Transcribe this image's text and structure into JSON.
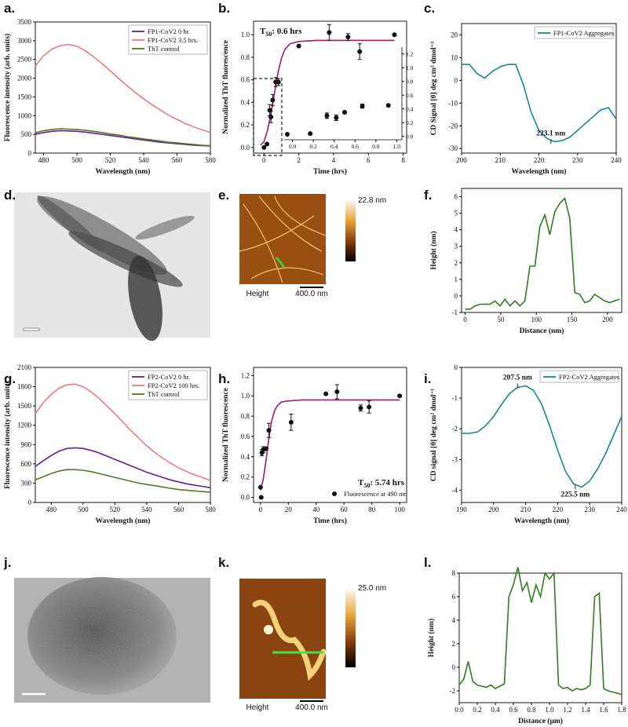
{
  "chart_data": [
    {
      "type": "line",
      "panel_label": "a.",
      "xlabel": "Wavelength (nm)",
      "ylabel": "Fluorescence intensity (arb. units)",
      "xlim": [
        475,
        580
      ],
      "ylim": [
        0,
        3500
      ],
      "xticks": [
        480,
        500,
        520,
        540,
        560,
        580
      ],
      "yticks": [
        0,
        500,
        1000,
        1500,
        2000,
        2500,
        3000,
        3500
      ],
      "legend": "upper right",
      "series": [
        {
          "name": "FP1-CoV2 0 hr.",
          "color": "#6a1b9a",
          "style": "line",
          "x": [
            475,
            480,
            485,
            490,
            495,
            500,
            505,
            510,
            515,
            520,
            525,
            530,
            535,
            540,
            545,
            550,
            555,
            560,
            565,
            570,
            575,
            580
          ],
          "values": [
            500,
            550,
            580,
            600,
            590,
            580,
            560,
            530,
            500,
            470,
            440,
            410,
            380,
            350,
            320,
            290,
            270,
            250,
            230,
            210,
            200,
            190
          ]
        },
        {
          "name": "FP1-CoV2 3.5 hrs.",
          "color": "#f07a78",
          "style": "line",
          "x": [
            475,
            480,
            485,
            490,
            495,
            500,
            505,
            510,
            515,
            520,
            525,
            530,
            535,
            540,
            545,
            550,
            555,
            560,
            565,
            570,
            575,
            580
          ],
          "values": [
            2330,
            2600,
            2780,
            2870,
            2900,
            2850,
            2730,
            2570,
            2390,
            2190,
            1990,
            1800,
            1620,
            1450,
            1290,
            1150,
            1010,
            900,
            790,
            700,
            620,
            550
          ]
        },
        {
          "name": "ThT control",
          "color": "#4f7a1f",
          "style": "line",
          "x": [
            475,
            480,
            485,
            490,
            495,
            500,
            505,
            510,
            515,
            520,
            525,
            530,
            535,
            540,
            545,
            550,
            555,
            560,
            565,
            570,
            575,
            580
          ],
          "values": [
            540,
            600,
            630,
            650,
            640,
            630,
            610,
            580,
            550,
            510,
            480,
            440,
            410,
            380,
            350,
            320,
            290,
            270,
            250,
            230,
            210,
            200
          ]
        }
      ]
    },
    {
      "type": "scatter",
      "panel_label": "b.",
      "xlabel": "Time (hrs)",
      "ylabel": "Normalized ThT fluorescence",
      "annotation": {
        "text": "T",
        "sub": "50",
        "rest": ": 0.6 hrs"
      },
      "xlim": [
        -0.6,
        8.2
      ],
      "ylim": [
        -0.05,
        1.12
      ],
      "xticks": [
        0,
        2,
        4,
        6,
        8
      ],
      "yticks": [
        {
          "value": 0,
          "label": "0.0"
        },
        0.2,
        0.4,
        0.6,
        0.8,
        {
          "value": 1,
          "label": "1.0"
        }
      ],
      "series": [
        {
          "color": "#9c1c6b",
          "style": "line",
          "x": [
            -0.2,
            0,
            0.2,
            0.4,
            0.6,
            0.8,
            1.0,
            1.2,
            1.5,
            2,
            3,
            4,
            6,
            7.5
          ],
          "values": [
            0.02,
            0.05,
            0.15,
            0.3,
            0.48,
            0.66,
            0.79,
            0.87,
            0.92,
            0.94,
            0.95,
            0.95,
            0.95,
            0.95
          ]
        },
        {
          "color": "#111111",
          "style": "scatter",
          "x": [
            0,
            0.17,
            0.33,
            0.4,
            0.5,
            0.67,
            0.83,
            2,
            3.75,
            4.83,
            5.5,
            7.5
          ],
          "values": [
            0,
            0.03,
            0.33,
            0.27,
            0.42,
            0.58,
            0.58,
            0.9,
            1.02,
            0.98,
            0.85,
            1.0
          ],
          "errors": [
            0,
            0,
            0.05,
            0.05,
            0.05,
            0.04,
            0.03,
            0,
            0.07,
            0.03,
            0.07,
            0
          ]
        }
      ],
      "inset": {
        "xlim": [
          -0.08,
          1.05
        ],
        "ylim": [
          -0.05,
          1.3
        ],
        "xticks": [
          {
            "value": 0,
            "label": "0.0"
          },
          0.2,
          0.4,
          0.6,
          0.8,
          {
            "value": 1,
            "label": "1.0"
          }
        ],
        "yticks": [
          {
            "value": 0,
            "label": "0.0"
          },
          0.2,
          0.4,
          0.6,
          0.8,
          {
            "value": 1,
            "label": "1.0"
          },
          1.2
        ],
        "series": [
          {
            "color": "#111111",
            "style": "scatter",
            "x": [
              -0.05,
              0.17,
              0.33,
              0.42,
              0.5,
              0.67,
              0.92
            ],
            "values": [
              0.03,
              0.04,
              0.3,
              0.27,
              0.35,
              0.44,
              0.45
            ],
            "errors": [
              0,
              0,
              0.04,
              0.04,
              0.02,
              0.03,
              0
            ]
          }
        ]
      }
    },
    {
      "type": "line",
      "panel_label": "c.",
      "xlabel": "Wavelength (nm)",
      "ylabel": "CD Signal [θ] deg cm² dmol⁻¹",
      "xlim": [
        200,
        240
      ],
      "ylim": [
        -32,
        25
      ],
      "xticks": [
        200,
        210,
        220,
        230,
        240
      ],
      "yticks": [
        -30,
        -20,
        -10,
        0,
        10,
        20
      ],
      "legend": "upper right",
      "series": [
        {
          "name": "FP1-CoV2 Aggregates",
          "color": "#16898c",
          "style": "line",
          "x": [
            200,
            202,
            204,
            206,
            208,
            210,
            212,
            214,
            216,
            218,
            220,
            222,
            224,
            226,
            228,
            230,
            232,
            234,
            236,
            238,
            240
          ],
          "values": [
            7,
            7,
            3,
            1,
            4,
            6,
            7,
            7,
            -2,
            -14,
            -22,
            -25.5,
            -27,
            -26.5,
            -25,
            -22,
            -19,
            -16,
            -13,
            -12,
            -17
          ]
        }
      ],
      "annotations": [
        {
          "text": "223.1 nm",
          "x": 223.1,
          "y": -27
        }
      ]
    },
    {
      "type": "line",
      "panel_label": "f.",
      "xlabel": "Distance (nm)",
      "ylabel": "Height (nm)",
      "xlim": [
        -5,
        220
      ],
      "ylim": [
        -1,
        6.5
      ],
      "xticks": [
        0,
        50,
        100,
        150,
        200
      ],
      "yticks": [
        -1,
        0,
        1,
        2,
        3,
        4,
        5,
        6
      ],
      "series": [
        {
          "color": "#2e7d1e",
          "style": "line",
          "x": [
            0,
            7,
            14,
            21,
            28,
            35,
            42,
            49,
            56,
            63,
            70,
            77,
            84,
            91,
            98,
            105,
            112,
            119,
            126,
            133,
            140,
            147,
            154,
            161,
            168,
            175,
            182,
            189,
            196,
            203,
            210,
            217
          ],
          "values": [
            -0.8,
            -0.8,
            -0.6,
            -0.5,
            -0.5,
            -0.5,
            -0.3,
            -0.6,
            -0.2,
            -0.6,
            -0.3,
            -0.6,
            -0.3,
            1.8,
            1.8,
            4.2,
            4.9,
            3.7,
            5.1,
            5.6,
            5.9,
            4.7,
            0.2,
            0.1,
            -0.4,
            -0.3,
            0.1,
            -0.1,
            -0.3,
            -0.4,
            -0.3,
            -0.2
          ]
        }
      ]
    },
    {
      "type": "line",
      "panel_label": "g.",
      "xlabel": "Wavelength (nm)",
      "ylabel": "Fluorescence intensity (arb. units)",
      "xlim": [
        470,
        580
      ],
      "ylim": [
        0,
        2100
      ],
      "xticks": [
        480,
        500,
        520,
        540,
        560,
        580
      ],
      "yticks": [
        0,
        300,
        600,
        900,
        1200,
        1500,
        1800,
        2100
      ],
      "legend": "upper right",
      "series": [
        {
          "name": "FP2-CoV2 0 hr.",
          "color": "#6a1b9a",
          "style": "line",
          "x": [
            470,
            475,
            480,
            485,
            490,
            495,
            500,
            505,
            510,
            515,
            520,
            525,
            530,
            535,
            540,
            545,
            550,
            555,
            560,
            565,
            570,
            575,
            580
          ],
          "values": [
            560,
            650,
            730,
            800,
            840,
            850,
            840,
            810,
            770,
            720,
            670,
            620,
            570,
            520,
            470,
            430,
            390,
            350,
            320,
            290,
            270,
            250,
            230
          ]
        },
        {
          "name": "FP2-CoV2 100 hrs.",
          "color": "#f07a78",
          "style": "line",
          "x": [
            470,
            475,
            480,
            485,
            490,
            495,
            500,
            505,
            510,
            515,
            520,
            525,
            530,
            535,
            540,
            545,
            550,
            555,
            560,
            565,
            570,
            575,
            580
          ],
          "values": [
            1380,
            1550,
            1680,
            1780,
            1830,
            1840,
            1800,
            1720,
            1620,
            1500,
            1380,
            1250,
            1120,
            1000,
            880,
            780,
            690,
            610,
            540,
            480,
            430,
            390,
            340
          ]
        },
        {
          "name": "ThT control",
          "color": "#4f7a1f",
          "style": "line",
          "x": [
            470,
            475,
            480,
            485,
            490,
            495,
            500,
            505,
            510,
            515,
            520,
            525,
            530,
            535,
            540,
            545,
            550,
            555,
            560,
            565,
            570,
            575,
            580
          ],
          "values": [
            350,
            400,
            450,
            490,
            510,
            510,
            500,
            480,
            450,
            420,
            390,
            360,
            330,
            300,
            280,
            260,
            240,
            220,
            200,
            190,
            180,
            170,
            160
          ]
        }
      ]
    },
    {
      "type": "scatter",
      "panel_label": "h.",
      "xlabel": "Time (hrs)",
      "ylabel": "Normalized ThT fluorescence",
      "annotation": {
        "text": "T",
        "sub": "50",
        "rest": ": 5.74 hrs"
      },
      "xlim": [
        -5,
        105
      ],
      "ylim": [
        -0.05,
        1.28
      ],
      "xticks": [
        0,
        20,
        40,
        60,
        80,
        100
      ],
      "yticks": [
        {
          "value": 0,
          "label": "0.0"
        },
        0.2,
        0.4,
        0.6,
        0.8,
        {
          "value": 1,
          "label": "1.0"
        },
        1.2
      ],
      "legend": "lower right",
      "series": [
        {
          "color": "#9c1c6b",
          "style": "line",
          "x": [
            0,
            2,
            4,
            6,
            8,
            10,
            12,
            15,
            20,
            30,
            40,
            60,
            80,
            100
          ],
          "values": [
            0.07,
            0.18,
            0.37,
            0.58,
            0.75,
            0.85,
            0.9,
            0.94,
            0.95,
            0.96,
            0.96,
            0.96,
            0.96,
            0.96
          ]
        },
        {
          "name": "Fluorescence at 490 nm",
          "color": "#111111",
          "style": "scatter",
          "x": [
            0,
            0.5,
            1,
            2,
            4,
            6,
            22,
            47,
            55,
            72,
            78,
            100
          ],
          "values": [
            0.1,
            0,
            0.44,
            0.47,
            0.48,
            0.66,
            0.74,
            1.02,
            1.04,
            0.88,
            0.89,
            1.0
          ],
          "errors": [
            0,
            0,
            0.03,
            0.03,
            0,
            0.07,
            0.08,
            0,
            0.07,
            0.03,
            0.06,
            0
          ]
        }
      ]
    },
    {
      "type": "line",
      "panel_label": "i.",
      "xlabel": "Wavelength (nm)",
      "ylabel": "CD signal [θ] deg cm² dmol⁻¹",
      "xlim": [
        190,
        240
      ],
      "ylim": [
        -4.4,
        0
      ],
      "xticks": [
        190,
        200,
        210,
        220,
        230,
        240
      ],
      "yticks": [
        0,
        -1,
        -2,
        -3,
        -4
      ],
      "legend": "upper right",
      "series": [
        {
          "name": "FP2-CoV2 Aggregates",
          "color": "#16898c",
          "style": "line",
          "x": [
            190,
            192.5,
            195,
            197.5,
            200,
            202.5,
            205,
            207.5,
            210,
            212.5,
            215,
            217.5,
            220,
            222.5,
            225,
            227.5,
            230,
            232.5,
            235,
            237.5,
            240
          ],
          "values": [
            -2.15,
            -2.15,
            -2.1,
            -1.9,
            -1.6,
            -1.2,
            -0.85,
            -0.65,
            -0.6,
            -0.75,
            -1.2,
            -1.9,
            -2.7,
            -3.4,
            -3.8,
            -3.9,
            -3.7,
            -3.3,
            -2.8,
            -2.2,
            -1.6
          ]
        }
      ],
      "annotations": [
        {
          "text": "207.5 nm",
          "x": 207.5,
          "y": -0.6
        },
        {
          "text": "225.5 nm",
          "x": 225.5,
          "y": -3.9
        }
      ]
    },
    {
      "type": "line",
      "panel_label": "l.",
      "xlabel": "Distance (μm)",
      "ylabel": "Height (nm)",
      "xlim": [
        0,
        1.8
      ],
      "ylim": [
        -3,
        8
      ],
      "xticks": [
        {
          "value": 0,
          "label": "0.0"
        },
        0.2,
        0.4,
        0.6,
        0.8,
        {
          "value": 1,
          "label": "1.0"
        },
        1.2,
        1.4,
        1.6,
        1.8
      ],
      "yticks": [
        -2,
        0,
        2,
        4,
        6,
        8
      ],
      "series": [
        {
          "color": "#2e7d1e",
          "style": "line",
          "x": [
            0,
            0.05,
            0.1,
            0.15,
            0.2,
            0.25,
            0.3,
            0.35,
            0.4,
            0.45,
            0.5,
            0.55,
            0.6,
            0.65,
            0.7,
            0.75,
            0.8,
            0.85,
            0.9,
            0.95,
            1.0,
            1.05,
            1.1,
            1.15,
            1.2,
            1.25,
            1.3,
            1.35,
            1.4,
            1.45,
            1.5,
            1.55,
            1.6,
            1.65,
            1.7,
            1.75,
            1.8
          ],
          "values": [
            -1.5,
            -1,
            0.5,
            -1.2,
            -1.5,
            -1.6,
            -1.7,
            -1.5,
            -1.8,
            -1.6,
            -1.4,
            6,
            7,
            8.5,
            6.5,
            7.2,
            5.5,
            7,
            6,
            8,
            7.5,
            8,
            -1.5,
            -1.8,
            -1.7,
            -2,
            -1.8,
            -1.9,
            -1.8,
            -1.5,
            6,
            6.3,
            -1.8,
            -2,
            -2.1,
            -2.2,
            -2.3
          ]
        }
      ]
    }
  ],
  "images": [
    {
      "panel_label": "d."
    },
    {
      "panel_label": "e.",
      "caption": "Height",
      "scale_bar": "400.0 nm",
      "colorbar_max": "22.8 nm"
    },
    {
      "panel_label": "j."
    },
    {
      "panel_label": "k.",
      "caption": "Height",
      "scale_bar": "400.0 nm",
      "colorbar_max": "25.0 nm"
    }
  ]
}
